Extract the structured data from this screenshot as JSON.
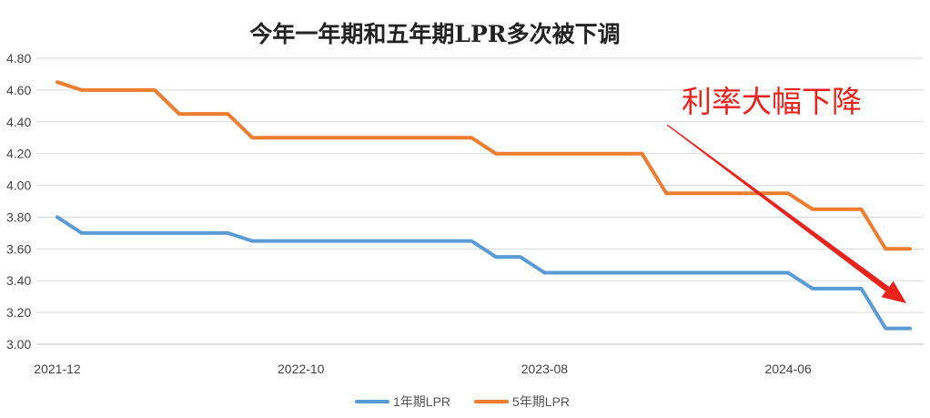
{
  "chart_data": {
    "type": "line",
    "title": "今年一年期和五年期LPR多次被下调",
    "xlabel": "",
    "ylabel": "",
    "x": [
      "2021-12",
      "2022-01",
      "2022-02",
      "2022-03",
      "2022-04",
      "2022-05",
      "2022-06",
      "2022-07",
      "2022-08",
      "2022-09",
      "2022-10",
      "2022-11",
      "2022-12",
      "2023-01",
      "2023-02",
      "2023-03",
      "2023-04",
      "2023-05",
      "2023-06",
      "2023-07",
      "2023-08",
      "2023-09",
      "2023-10",
      "2023-11",
      "2023-12",
      "2024-01",
      "2024-02",
      "2024-03",
      "2024-04",
      "2024-05",
      "2024-06",
      "2024-07",
      "2024-08",
      "2024-09",
      "2024-10",
      "2024-11"
    ],
    "x_tick_labels": [
      "2021-12",
      "2022-10",
      "2023-08",
      "2024-06"
    ],
    "ylim": [
      3.0,
      4.8
    ],
    "y_ticks": [
      "3.00",
      "3.20",
      "3.40",
      "3.60",
      "3.80",
      "4.00",
      "4.20",
      "4.40",
      "4.60",
      "4.80"
    ],
    "grid": "horizontal",
    "legend_position": "bottom",
    "series": [
      {
        "name": "1年期LPR",
        "color": "#5b9bd5",
        "values": [
          3.8,
          3.7,
          3.7,
          3.7,
          3.7,
          3.7,
          3.7,
          3.7,
          3.65,
          3.65,
          3.65,
          3.65,
          3.65,
          3.65,
          3.65,
          3.65,
          3.65,
          3.65,
          3.55,
          3.55,
          3.45,
          3.45,
          3.45,
          3.45,
          3.45,
          3.45,
          3.45,
          3.45,
          3.45,
          3.45,
          3.45,
          3.35,
          3.35,
          3.35,
          3.1,
          3.1
        ]
      },
      {
        "name": "5年期LPR",
        "color": "#ed7d31",
        "values": [
          4.65,
          4.6,
          4.6,
          4.6,
          4.6,
          4.45,
          4.45,
          4.45,
          4.3,
          4.3,
          4.3,
          4.3,
          4.3,
          4.3,
          4.3,
          4.3,
          4.3,
          4.3,
          4.2,
          4.2,
          4.2,
          4.2,
          4.2,
          4.2,
          4.2,
          3.95,
          3.95,
          3.95,
          3.95,
          3.95,
          3.95,
          3.85,
          3.85,
          3.85,
          3.6,
          3.6
        ]
      }
    ],
    "annotations": [
      {
        "text": "利率大幅下降",
        "color": "#e8231c"
      }
    ]
  }
}
